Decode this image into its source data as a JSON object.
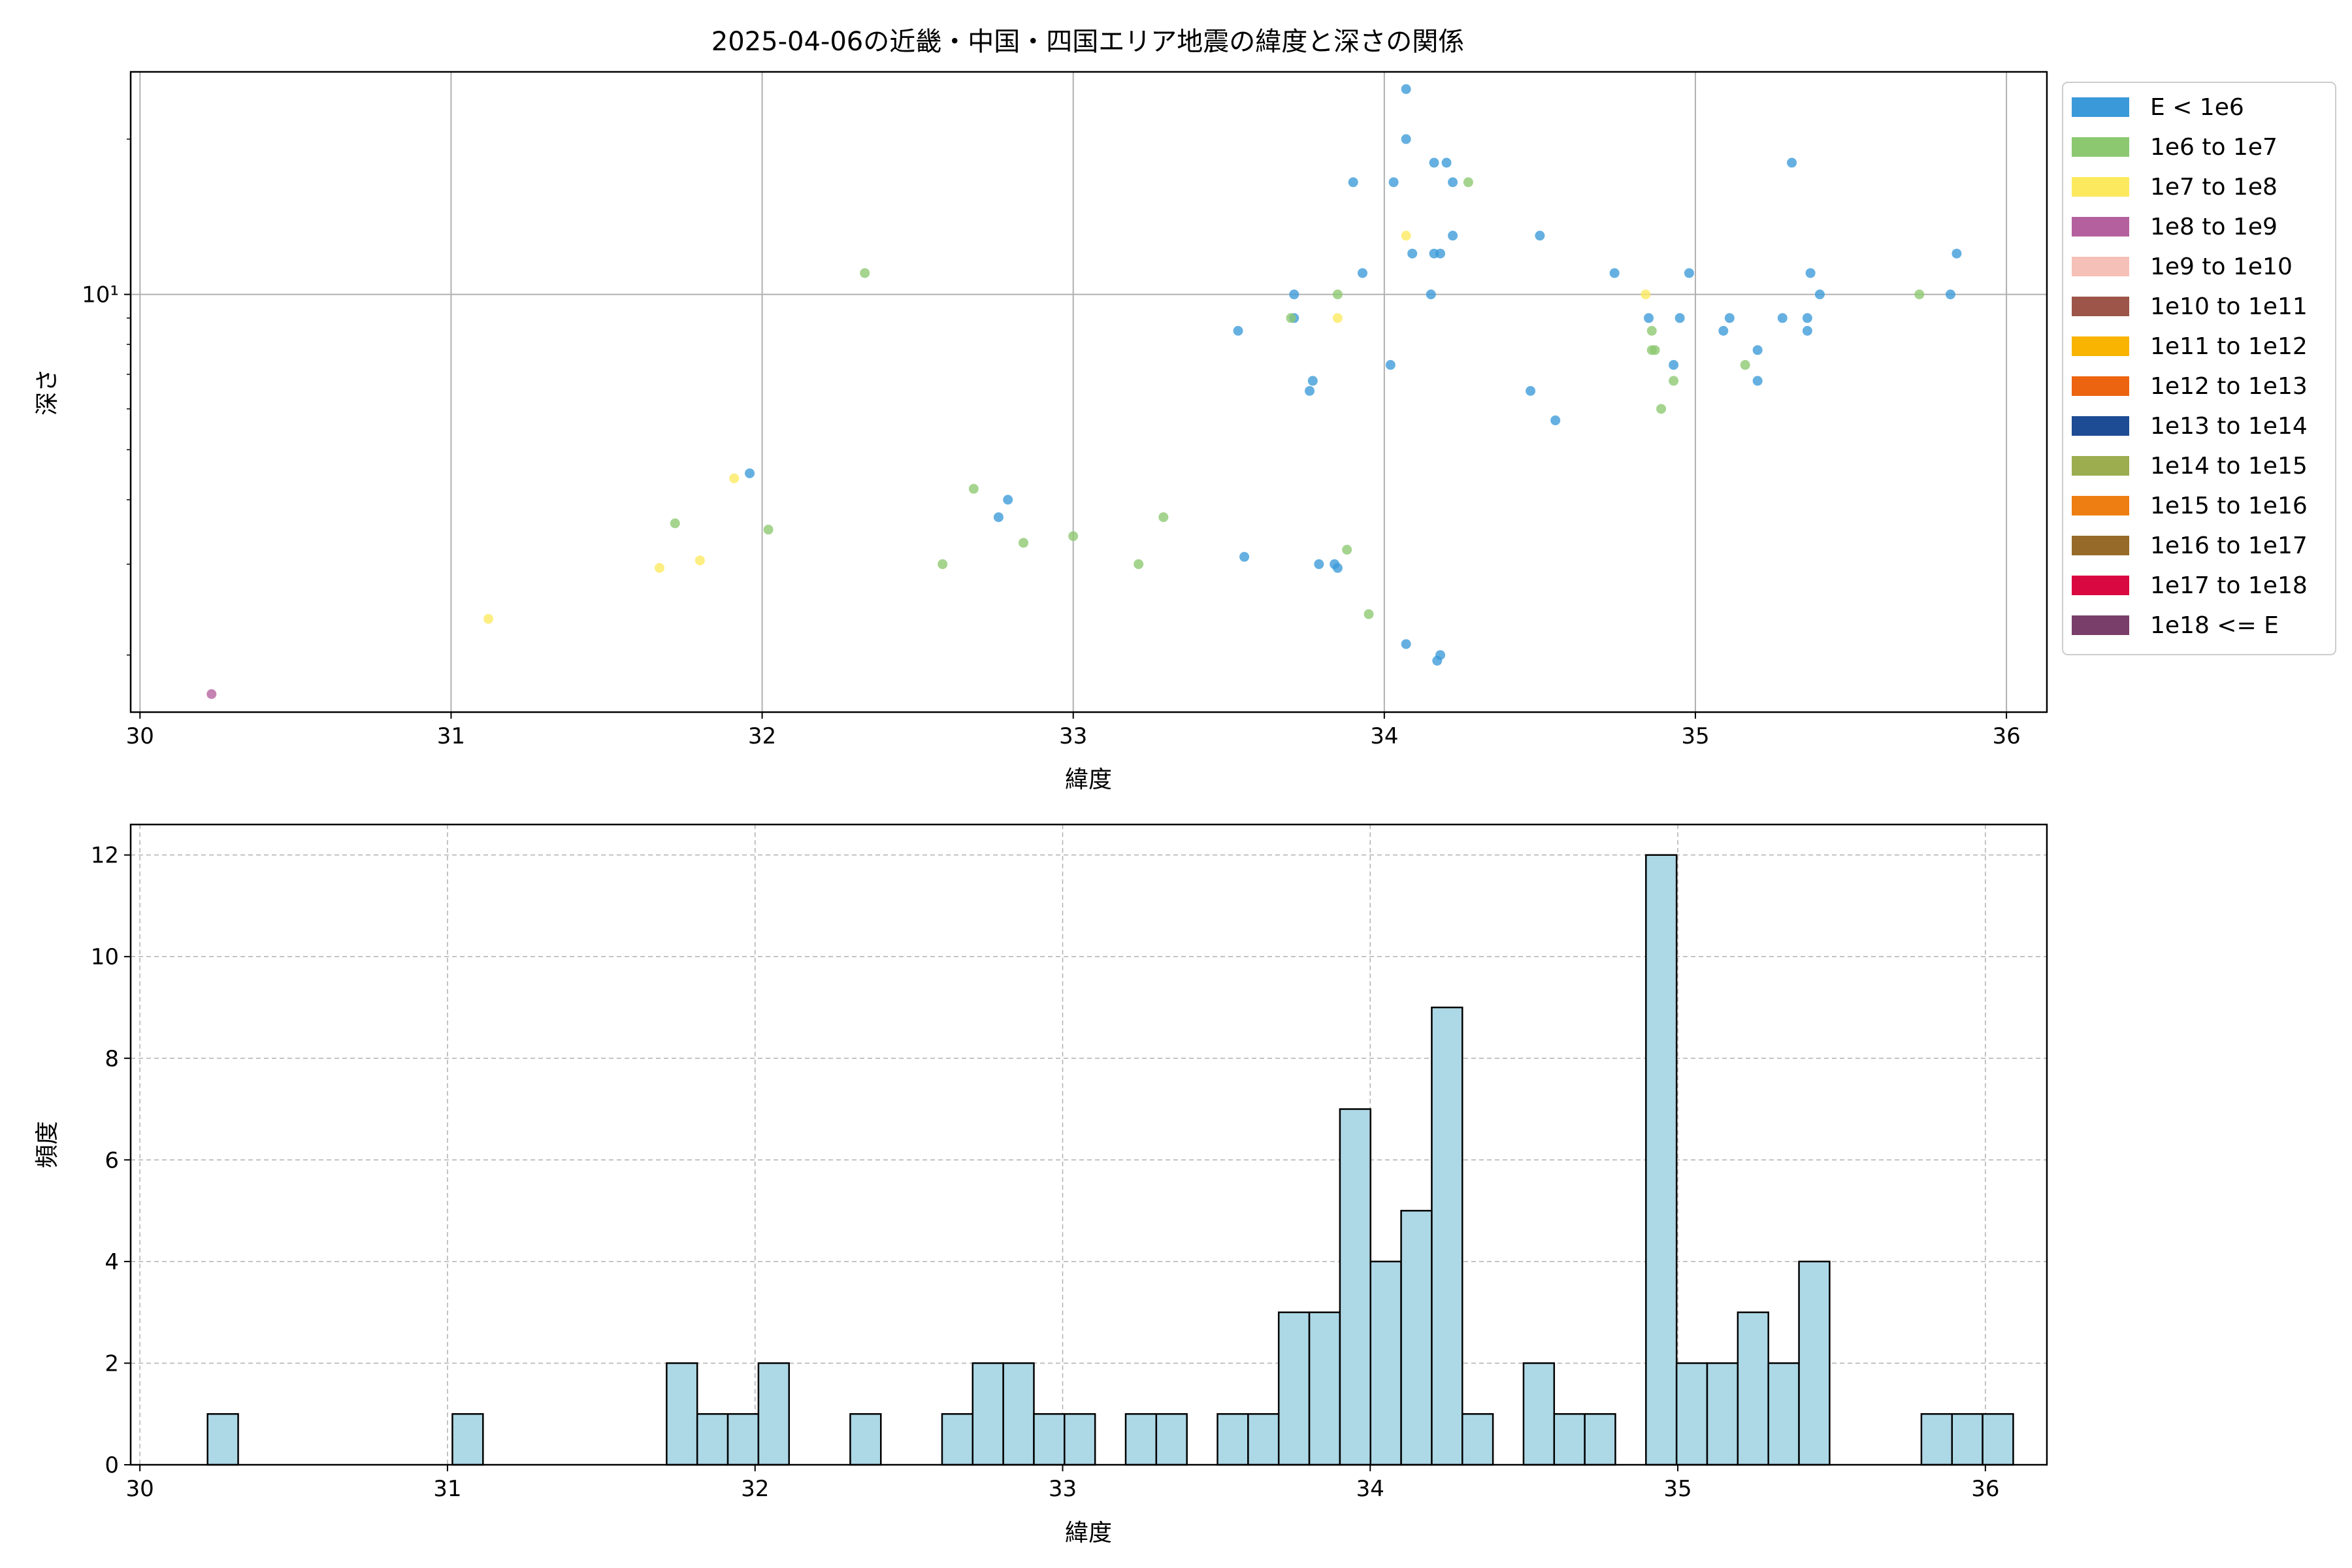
{
  "chart_data": [
    {
      "type": "scatter",
      "title": "2025-04-06の近畿・中国・四国エリア地震の緯度と深さの関係",
      "xlabel": "緯度",
      "ylabel": "深さ",
      "xlim": [
        29.97,
        36.13
      ],
      "ylim": [
        1.55,
        27
      ],
      "yscale": "log",
      "xticks": [
        30,
        31,
        32,
        33,
        34,
        35,
        36
      ],
      "yticks": [
        {
          "value": 10,
          "label": "10¹"
        }
      ],
      "grid": true,
      "legend_position": "outside-right",
      "legend": [
        {
          "label": "E < 1e6",
          "color": "#3a9ad9"
        },
        {
          "label": "1e6 to 1e7",
          "color": "#8cc870"
        },
        {
          "label": "1e7 to 1e8",
          "color": "#fde95e"
        },
        {
          "label": "1e8 to 1e9",
          "color": "#b5609e"
        },
        {
          "label": "1e9 to 1e10",
          "color": "#f5c0b8"
        },
        {
          "label": "1e10 to 1e11",
          "color": "#9c5548"
        },
        {
          "label": "1e11 to 1e12",
          "color": "#f8b400"
        },
        {
          "label": "1e12 to 1e13",
          "color": "#ec6410"
        },
        {
          "label": "1e13 to 1e14",
          "color": "#1e4c94"
        },
        {
          "label": "1e14 to 1e15",
          "color": "#9bad4e"
        },
        {
          "label": "1e15 to 1e16",
          "color": "#ee7d12"
        },
        {
          "label": "1e16 to 1e17",
          "color": "#966a28"
        },
        {
          "label": "1e17 to 1e18",
          "color": "#da0840"
        },
        {
          "label": "1e18 <= E",
          "color": "#7a3e6a"
        }
      ],
      "series": [
        {
          "name": "E < 1e6",
          "color": "#3a9ad9",
          "points": [
            [
              31.96,
              4.5
            ],
            [
              32.76,
              3.7
            ],
            [
              32.79,
              4.0
            ],
            [
              33.53,
              8.5
            ],
            [
              33.55,
              3.1
            ],
            [
              33.71,
              9.0
            ],
            [
              33.71,
              10.0
            ],
            [
              33.76,
              6.5
            ],
            [
              33.77,
              6.8
            ],
            [
              33.79,
              3.0
            ],
            [
              33.84,
              3.0
            ],
            [
              33.85,
              2.95
            ],
            [
              33.9,
              16.5
            ],
            [
              33.93,
              11.0
            ],
            [
              34.02,
              7.3
            ],
            [
              34.03,
              16.5
            ],
            [
              34.07,
              2.1
            ],
            [
              34.07,
              20.0
            ],
            [
              34.07,
              25.0
            ],
            [
              34.09,
              12.0
            ],
            [
              34.15,
              10.0
            ],
            [
              34.16,
              12.0
            ],
            [
              34.16,
              18.0
            ],
            [
              34.17,
              1.95
            ],
            [
              34.18,
              2.0
            ],
            [
              34.18,
              12.0
            ],
            [
              34.2,
              18.0
            ],
            [
              34.22,
              16.5
            ],
            [
              34.22,
              13.0
            ],
            [
              34.47,
              6.5
            ],
            [
              34.5,
              13.0
            ],
            [
              34.55,
              5.7
            ],
            [
              34.74,
              11.0
            ],
            [
              34.85,
              9.0
            ],
            [
              34.93,
              7.3
            ],
            [
              34.95,
              9.0
            ],
            [
              34.98,
              11.0
            ],
            [
              35.09,
              8.5
            ],
            [
              35.11,
              9.0
            ],
            [
              35.2,
              7.8
            ],
            [
              35.2,
              6.8
            ],
            [
              35.28,
              9.0
            ],
            [
              35.31,
              18.0
            ],
            [
              35.36,
              9.0
            ],
            [
              35.36,
              8.5
            ],
            [
              35.37,
              11.0
            ],
            [
              35.4,
              10.0
            ],
            [
              35.82,
              10.0
            ],
            [
              35.84,
              12.0
            ]
          ]
        },
        {
          "name": "1e6 to 1e7",
          "color": "#8cc870",
          "points": [
            [
              31.72,
              3.6
            ],
            [
              32.02,
              3.5
            ],
            [
              32.33,
              11.0
            ],
            [
              32.58,
              3.0
            ],
            [
              32.68,
              4.2
            ],
            [
              32.84,
              3.3
            ],
            [
              33.0,
              3.4
            ],
            [
              33.21,
              3.0
            ],
            [
              33.29,
              3.7
            ],
            [
              33.7,
              9.0
            ],
            [
              33.85,
              10.0
            ],
            [
              33.88,
              3.2
            ],
            [
              33.95,
              2.4
            ],
            [
              34.27,
              16.5
            ],
            [
              34.86,
              7.8
            ],
            [
              34.86,
              8.5
            ],
            [
              34.87,
              7.8
            ],
            [
              34.89,
              6.0
            ],
            [
              34.93,
              6.8
            ],
            [
              35.16,
              7.3
            ],
            [
              35.72,
              10.0
            ]
          ]
        },
        {
          "name": "1e7 to 1e8",
          "color": "#fde95e",
          "points": [
            [
              31.12,
              2.35
            ],
            [
              31.67,
              2.95
            ],
            [
              31.8,
              3.05
            ],
            [
              31.91,
              4.4
            ],
            [
              33.85,
              9.0
            ],
            [
              34.07,
              13.0
            ],
            [
              34.84,
              10.0
            ]
          ]
        },
        {
          "name": "1e8 to 1e9",
          "color": "#b5609e",
          "points": [
            [
              30.23,
              1.68
            ]
          ]
        }
      ]
    },
    {
      "type": "histogram",
      "xlabel": "緯度",
      "ylabel": "頻度",
      "xlim": [
        29.97,
        36.2
      ],
      "ylim": [
        0,
        12.6
      ],
      "xticks": [
        30,
        31,
        32,
        33,
        34,
        35,
        36
      ],
      "yticks": [
        0,
        2,
        4,
        6,
        8,
        10,
        12
      ],
      "grid": true,
      "bar_color": "#add8e6",
      "edge_color": "#000000",
      "bin_start": 30.22,
      "bin_width": 0.0995,
      "counts": [
        1,
        0,
        0,
        0,
        0,
        0,
        0,
        0,
        1,
        0,
        0,
        0,
        0,
        0,
        0,
        2,
        1,
        1,
        2,
        0,
        0,
        1,
        0,
        0,
        1,
        2,
        2,
        1,
        1,
        0,
        1,
        1,
        0,
        1,
        1,
        3,
        3,
        7,
        4,
        5,
        9,
        1,
        0,
        2,
        1,
        1,
        0,
        12,
        2,
        2,
        3,
        2,
        4,
        0,
        0,
        0,
        1,
        1,
        1
      ]
    }
  ]
}
